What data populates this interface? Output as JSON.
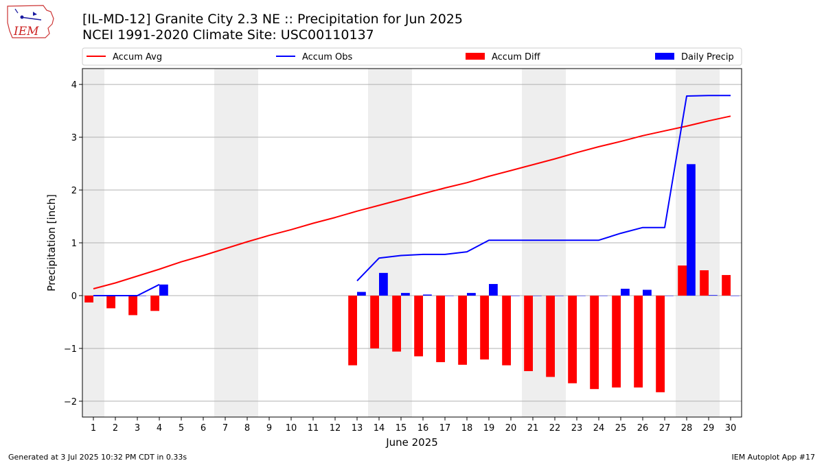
{
  "header": {
    "title_line1": "[IL-MD-12] Granite City 2.3 NE :: Precipitation for Jun 2025",
    "title_line2": "NCEI 1991-2020 Climate Site: USC00110137",
    "logo_text": "IEM"
  },
  "footer": {
    "generated": "Generated at 3 Jul 2025 10:32 PM CDT in 0.33s",
    "app": "IEM Autoplot App #17"
  },
  "colors": {
    "accum_avg": "#ff0000",
    "accum_obs": "#0000ff",
    "accum_diff": "#ff0000",
    "daily_precip": "#0000ff",
    "weekend_shade": "#eeeeee",
    "grid": "#b0b0b0"
  },
  "chart_data": {
    "type": "bar",
    "xlabel": "June 2025",
    "ylabel": "Precipitation [inch]",
    "ylim": [
      -2.3,
      4.3
    ],
    "yticks": [
      -2,
      -1,
      0,
      1,
      2,
      3,
      4
    ],
    "ytick_labels": [
      "−2",
      "−1",
      "0",
      "1",
      "2",
      "3",
      "4"
    ],
    "grid": "horizontal",
    "legend_position": "top",
    "days": [
      1,
      2,
      3,
      4,
      5,
      6,
      7,
      8,
      9,
      10,
      11,
      12,
      13,
      14,
      15,
      16,
      17,
      18,
      19,
      20,
      21,
      22,
      23,
      24,
      25,
      26,
      27,
      28,
      29,
      30
    ],
    "weekend_days": [
      1,
      7,
      8,
      14,
      15,
      21,
      22,
      28,
      29
    ],
    "series": [
      {
        "name": "Accum Avg",
        "kind": "line",
        "values": [
          0.13,
          0.24,
          0.37,
          0.5,
          0.64,
          0.76,
          0.89,
          1.02,
          1.14,
          1.25,
          1.37,
          1.48,
          1.6,
          1.71,
          1.82,
          1.93,
          2.04,
          2.14,
          2.26,
          2.37,
          2.48,
          2.59,
          2.71,
          2.82,
          2.92,
          3.03,
          3.12,
          3.21,
          3.31,
          3.4
        ]
      },
      {
        "name": "Accum Obs",
        "kind": "line",
        "values": [
          0,
          0,
          0,
          0.21,
          null,
          null,
          null,
          null,
          null,
          null,
          null,
          null,
          0.28,
          0.71,
          0.76,
          0.78,
          0.78,
          0.83,
          1.05,
          1.05,
          1.05,
          1.05,
          1.05,
          1.05,
          1.18,
          1.29,
          1.29,
          3.78,
          3.79,
          3.79
        ]
      },
      {
        "name": "Accum Diff",
        "kind": "bar",
        "values": [
          -0.13,
          -0.24,
          -0.37,
          -0.29,
          null,
          null,
          null,
          null,
          null,
          null,
          null,
          null,
          -1.32,
          -1.0,
          -1.06,
          -1.15,
          -1.26,
          -1.31,
          -1.21,
          -1.32,
          -1.43,
          -1.54,
          -1.66,
          -1.77,
          -1.74,
          -1.74,
          -1.83,
          0.57,
          0.48,
          0.39
        ]
      },
      {
        "name": "Daily Precip",
        "kind": "bar",
        "values": [
          0,
          0,
          0,
          0.21,
          null,
          null,
          null,
          null,
          null,
          null,
          null,
          null,
          0.07,
          0.43,
          0.05,
          0.02,
          0,
          0.05,
          0.22,
          0,
          0,
          0,
          0,
          0,
          0.13,
          0.11,
          0,
          2.49,
          0.01,
          0
        ]
      }
    ]
  }
}
